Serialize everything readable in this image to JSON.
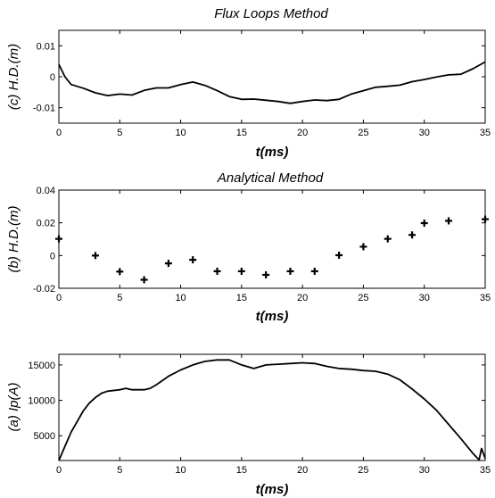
{
  "chart_data": [
    {
      "type": "line",
      "title": "Flux Loops Method",
      "xlabel": "t(ms)",
      "ylabel": "(c) H.D.(m)",
      "xlim": [
        0,
        35
      ],
      "ylim": [
        -0.015,
        0.015
      ],
      "xticks": [
        "0",
        "5",
        "10",
        "15",
        "20",
        "25",
        "30",
        "35"
      ],
      "yticks": [
        "-0.01",
        "0",
        "0.01"
      ],
      "grid": false,
      "series": [
        {
          "x": [
            0,
            0.5,
            1,
            2,
            3,
            4,
            5,
            6,
            7,
            8,
            9,
            10,
            11,
            12,
            13,
            14,
            15,
            16,
            17,
            18,
            19,
            20,
            21,
            22,
            23,
            24,
            25,
            26,
            27,
            28,
            29,
            30,
            31,
            32,
            33,
            34,
            35
          ],
          "y": [
            0.004,
            0.0,
            -0.0025,
            -0.0037,
            -0.0052,
            -0.0061,
            -0.0056,
            -0.0059,
            -0.0044,
            -0.0036,
            -0.0036,
            -0.0025,
            -0.0017,
            -0.0028,
            -0.0045,
            -0.0064,
            -0.0073,
            -0.0072,
            -0.0076,
            -0.008,
            -0.0086,
            -0.008,
            -0.0075,
            -0.0077,
            -0.0073,
            -0.0056,
            -0.0045,
            -0.0034,
            -0.0031,
            -0.0027,
            -0.0016,
            -0.0009,
            -0.0001,
            0.0006,
            0.0008,
            0.0026,
            0.0048
          ]
        }
      ]
    },
    {
      "type": "scatter",
      "title": "Analytical Method",
      "xlabel": "t(ms)",
      "ylabel": "(b) H.D.(m)",
      "xlim": [
        0,
        35
      ],
      "ylim": [
        -0.02,
        0.04
      ],
      "xticks": [
        "0",
        "5",
        "10",
        "15",
        "20",
        "25",
        "30",
        "35"
      ],
      "yticks": [
        "-0.02",
        "0",
        "0.02",
        "0.04"
      ],
      "grid": false,
      "series": [
        {
          "x": [
            0,
            3,
            5,
            7,
            9,
            11,
            13,
            15,
            17,
            19,
            21,
            23,
            25,
            27,
            29,
            30,
            32,
            35
          ],
          "y": [
            0.0102,
            0.0,
            -0.0098,
            -0.0148,
            -0.0048,
            -0.0026,
            -0.0096,
            -0.0096,
            -0.0118,
            -0.0096,
            -0.0096,
            0.0002,
            0.0054,
            0.0102,
            0.0126,
            0.0198,
            0.0212,
            0.0222
          ]
        }
      ]
    },
    {
      "type": "line",
      "title": "",
      "xlabel": "t(ms)",
      "ylabel": "(a) Ip(A)",
      "xlim": [
        0,
        35
      ],
      "ylim": [
        1500,
        16500
      ],
      "xticks": [
        "0",
        "5",
        "10",
        "15",
        "20",
        "25",
        "30",
        "35"
      ],
      "yticks": [
        "5000",
        "10000",
        "15000"
      ],
      "grid": false,
      "series": [
        {
          "x": [
            0,
            0.5,
            1,
            1.5,
            2,
            2.5,
            3,
            3.5,
            4,
            5,
            5.5,
            6,
            7,
            7.5,
            8,
            9,
            10,
            11,
            12,
            13,
            14,
            15,
            16,
            17,
            18,
            19,
            20,
            21,
            22,
            23,
            24,
            25,
            26,
            27,
            28,
            29,
            30,
            31,
            32,
            33,
            34,
            34.5,
            34.7,
            35
          ],
          "y": [
            1500,
            3500,
            5500,
            7000,
            8500,
            9600,
            10400,
            11000,
            11300,
            11500,
            11700,
            11500,
            11500,
            11700,
            12200,
            13400,
            14300,
            15000,
            15500,
            15700,
            15700,
            15000,
            14500,
            15000,
            15100,
            15200,
            15300,
            15200,
            14800,
            14500,
            14400,
            14200,
            14100,
            13700,
            12900,
            11600,
            10200,
            8600,
            6600,
            4600,
            2500,
            1600,
            3200,
            1800
          ]
        }
      ]
    }
  ]
}
